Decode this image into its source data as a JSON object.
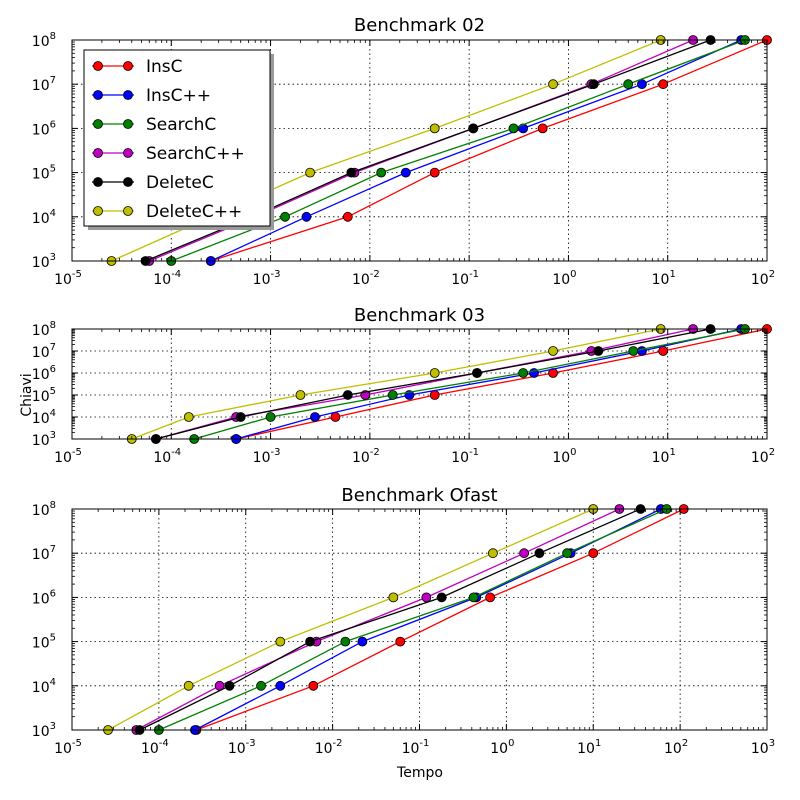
{
  "figure": {
    "ylabel": "Chiavi",
    "xlabel": "Tempo"
  },
  "colors": {
    "InsC": "#ff0000",
    "InsC++": "#0000ff",
    "SearchC": "#008000",
    "SearchC++": "#bf00bf",
    "DeleteC": "#000000",
    "DeleteC++": "#bfbf00"
  },
  "legend": {
    "placement": "top-left of first panel",
    "entries": [
      "InsC",
      "InsC++",
      "SearchC",
      "SearchC++",
      "DeleteC",
      "DeleteC++"
    ]
  },
  "chart_data": [
    {
      "type": "line",
      "title": "Benchmark 02",
      "xscale": "log",
      "yscale": "log",
      "xlim": [
        1e-05,
        100
      ],
      "ylim": [
        1000,
        100000000
      ],
      "grid": true,
      "xticks": [
        1e-05,
        0.0001,
        0.001,
        0.01,
        0.1,
        1,
        10,
        100
      ],
      "yticks": [
        1000,
        10000,
        100000,
        1000000,
        10000000,
        100000000
      ],
      "y": [
        1000,
        10000,
        100000,
        1000000,
        10000000,
        100000000
      ],
      "series": [
        {
          "name": "InsC",
          "x": [
            0.00025,
            0.006,
            0.045,
            0.55,
            9,
            100
          ]
        },
        {
          "name": "InsC++",
          "x": [
            0.00025,
            0.0023,
            0.023,
            0.35,
            5.5,
            55
          ]
        },
        {
          "name": "SearchC",
          "x": [
            0.0001,
            0.0014,
            0.013,
            0.28,
            4,
            60
          ]
        },
        {
          "name": "SearchC++",
          "x": [
            6e-05,
            0.0007,
            0.007,
            0.11,
            1.7,
            18
          ]
        },
        {
          "name": "DeleteC",
          "x": [
            5.5e-05,
            0.00065,
            0.0065,
            0.11,
            1.8,
            27
          ]
        },
        {
          "name": "DeleteC++",
          "x": [
            2.5e-05,
            0.00025,
            0.0025,
            0.045,
            0.7,
            8.5
          ]
        }
      ]
    },
    {
      "type": "line",
      "title": "Benchmark 03",
      "xscale": "log",
      "yscale": "log",
      "xlim": [
        1e-05,
        100
      ],
      "ylim": [
        1000,
        100000000
      ],
      "grid": true,
      "xticks": [
        1e-05,
        0.0001,
        0.001,
        0.01,
        0.1,
        1,
        10,
        100
      ],
      "yticks": [
        1000,
        10000,
        100000,
        1000000,
        10000000,
        100000000
      ],
      "y": [
        1000,
        10000,
        100000,
        1000000,
        10000000,
        100000000
      ],
      "series": [
        {
          "name": "InsC",
          "x": [
            0.00045,
            0.0045,
            0.045,
            0.7,
            9,
            100
          ]
        },
        {
          "name": "InsC++",
          "x": [
            0.00045,
            0.0028,
            0.025,
            0.45,
            5.5,
            55
          ]
        },
        {
          "name": "SearchC",
          "x": [
            0.00017,
            0.001,
            0.017,
            0.35,
            4.5,
            60
          ]
        },
        {
          "name": "SearchC++",
          "x": [
            7e-05,
            0.00045,
            0.009,
            0.12,
            1.7,
            18
          ]
        },
        {
          "name": "DeleteC",
          "x": [
            7e-05,
            0.0005,
            0.006,
            0.12,
            2,
            27
          ]
        },
        {
          "name": "DeleteC++",
          "x": [
            4e-05,
            0.00015,
            0.002,
            0.045,
            0.7,
            8.5
          ]
        }
      ]
    },
    {
      "type": "line",
      "title": "Benchmark Ofast",
      "xscale": "log",
      "yscale": "log",
      "xlim": [
        1e-05,
        1000
      ],
      "ylim": [
        1000,
        100000000
      ],
      "grid": true,
      "xticks": [
        1e-05,
        0.0001,
        0.001,
        0.01,
        0.1,
        1,
        10,
        100,
        1000
      ],
      "yticks": [
        1000,
        10000,
        100000,
        1000000,
        10000000,
        100000000
      ],
      "y": [
        1000,
        10000,
        100000,
        1000000,
        10000000,
        100000000
      ],
      "series": [
        {
          "name": "InsC",
          "x": [
            0.00027,
            0.006,
            0.06,
            0.65,
            10,
            110
          ]
        },
        {
          "name": "InsC++",
          "x": [
            0.00026,
            0.0025,
            0.022,
            0.45,
            5.5,
            60
          ]
        },
        {
          "name": "SearchC",
          "x": [
            0.0001,
            0.0015,
            0.014,
            0.42,
            5,
            70
          ]
        },
        {
          "name": "SearchC++",
          "x": [
            5.5e-05,
            0.0005,
            0.0065,
            0.12,
            1.6,
            20
          ]
        },
        {
          "name": "DeleteC",
          "x": [
            6e-05,
            0.00065,
            0.0055,
            0.18,
            2.4,
            35
          ]
        },
        {
          "name": "DeleteC++",
          "x": [
            2.6e-05,
            0.00022,
            0.0025,
            0.05,
            0.7,
            10
          ]
        }
      ]
    }
  ]
}
